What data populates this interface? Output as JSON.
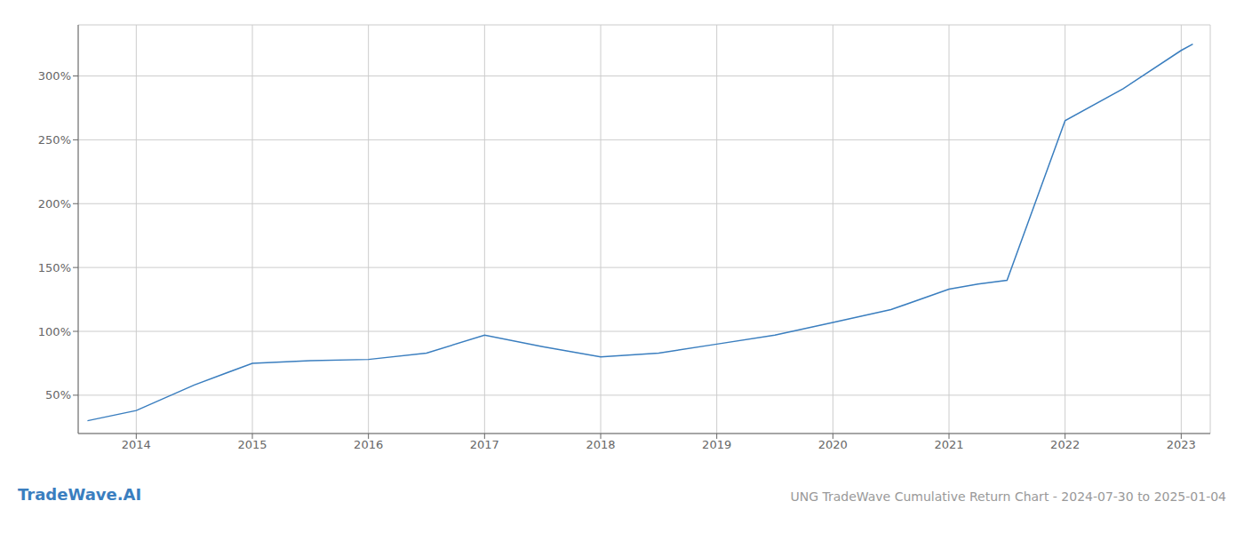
{
  "chart_data": {
    "type": "line",
    "title": "UNG TradeWave Cumulative Return Chart - 2024-07-30 to 2025-01-04",
    "annotations": [
      "TradeWave.AI"
    ],
    "color": "#3a7ebf",
    "x": [
      2013.58,
      2014.0,
      2014.5,
      2015.0,
      2015.5,
      2016.0,
      2016.5,
      2017.0,
      2017.5,
      2018.0,
      2018.5,
      2019.0,
      2019.5,
      2020.0,
      2020.5,
      2021.0,
      2021.25,
      2021.5,
      2022.0,
      2022.5,
      2023.0,
      2023.1
    ],
    "values": [
      30,
      38,
      58,
      75,
      77,
      78,
      83,
      97,
      88,
      80,
      83,
      90,
      97,
      107,
      117,
      133,
      137,
      140,
      265,
      290,
      320,
      325
    ],
    "xlim": [
      2013.5,
      2023.25
    ],
    "ylim": [
      20,
      340
    ],
    "xticks": [
      2014,
      2015,
      2016,
      2017,
      2018,
      2019,
      2020,
      2021,
      2022,
      2023
    ],
    "yticks": [
      {
        "value": 50,
        "label": "50%"
      },
      {
        "value": 100,
        "label": "100%"
      },
      {
        "value": 150,
        "label": "150%"
      },
      {
        "value": 200,
        "label": "200%"
      },
      {
        "value": 250,
        "label": "250%"
      },
      {
        "value": 300,
        "label": "300%"
      }
    ],
    "grid": true
  }
}
